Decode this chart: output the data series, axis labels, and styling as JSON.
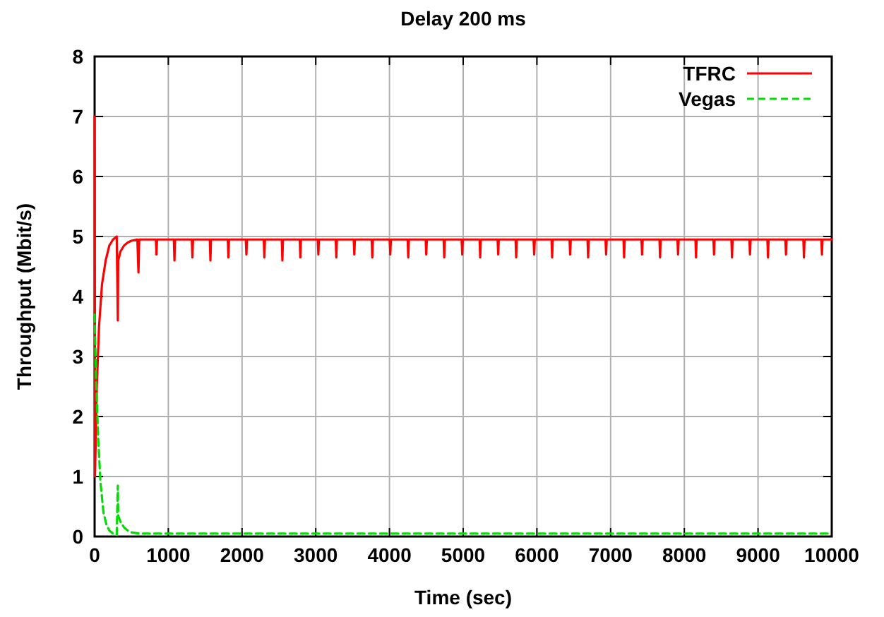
{
  "chart_data": {
    "type": "line",
    "title": "Delay 200 ms",
    "xlabel": "Time (sec)",
    "ylabel": "Throughput (Mbit/s)",
    "xlim": [
      0,
      10000
    ],
    "xticks": [
      0,
      1000,
      2000,
      3000,
      4000,
      5000,
      6000,
      7000,
      8000,
      9000,
      10000
    ],
    "ylim": [
      0,
      8
    ],
    "yticks": [
      0,
      1,
      2,
      3,
      4,
      5,
      6,
      7,
      8
    ],
    "grid": true,
    "legend": "top right",
    "series": [
      {
        "name": "TFRC",
        "color": "#ff0000",
        "line_style": "solid",
        "x": [
          0,
          5,
          30,
          60,
          100,
          150,
          200,
          250,
          300,
          315,
          320,
          350,
          400,
          450,
          500,
          580,
          595,
          605,
          831,
          839,
          847,
          1075,
          1083,
          1091,
          1319,
          1327,
          1335,
          1563,
          1571,
          1579,
          1807,
          1815,
          1823,
          2051,
          2059,
          2067,
          2295,
          2303,
          2311,
          2539,
          2547,
          2555,
          2783,
          2791,
          2799,
          3027,
          3035,
          3043,
          3271,
          3279,
          3287,
          3515,
          3523,
          3531,
          3759,
          3767,
          3775,
          4003,
          4011,
          4019,
          4247,
          4255,
          4263,
          4491,
          4499,
          4507,
          4735,
          4743,
          4751,
          4979,
          4987,
          4995,
          5223,
          5231,
          5239,
          5467,
          5475,
          5483,
          5711,
          5719,
          5727,
          5955,
          5963,
          5971,
          6199,
          6207,
          6215,
          6443,
          6451,
          6459,
          6687,
          6695,
          6703,
          6931,
          6939,
          6947,
          7175,
          7183,
          7191,
          7419,
          7427,
          7435,
          7663,
          7671,
          7679,
          7907,
          7915,
          7923,
          8151,
          8159,
          8167,
          8395,
          8403,
          8411,
          8639,
          8647,
          8655,
          8883,
          8891,
          8899,
          9127,
          9135,
          9143,
          9371,
          9379,
          9387,
          9615,
          9623,
          9631,
          9859,
          9867,
          9875,
          10000
        ],
        "values": [
          7,
          1,
          2.5,
          3.5,
          4.2,
          4.6,
          4.85,
          4.95,
          5,
          3.6,
          4.6,
          4.75,
          4.85,
          4.9,
          4.93,
          4.95,
          4.4,
          4.95,
          4.95,
          4.7,
          4.95,
          4.95,
          4.6,
          4.95,
          4.95,
          4.65,
          4.95,
          4.95,
          4.6,
          4.95,
          4.95,
          4.65,
          4.95,
          4.95,
          4.7,
          4.95,
          4.95,
          4.65,
          4.95,
          4.95,
          4.6,
          4.95,
          4.95,
          4.65,
          4.95,
          4.95,
          4.7,
          4.95,
          4.95,
          4.65,
          4.95,
          4.95,
          4.7,
          4.95,
          4.95,
          4.65,
          4.95,
          4.95,
          4.7,
          4.95,
          4.95,
          4.65,
          4.95,
          4.95,
          4.7,
          4.95,
          4.95,
          4.65,
          4.95,
          4.95,
          4.7,
          4.95,
          4.95,
          4.65,
          4.95,
          4.95,
          4.7,
          4.95,
          4.95,
          4.65,
          4.95,
          4.95,
          4.7,
          4.95,
          4.95,
          4.65,
          4.95,
          4.95,
          4.7,
          4.95,
          4.95,
          4.65,
          4.95,
          4.95,
          4.7,
          4.95,
          4.95,
          4.65,
          4.95,
          4.95,
          4.7,
          4.95,
          4.95,
          4.65,
          4.95,
          4.95,
          4.7,
          4.95,
          4.95,
          4.65,
          4.95,
          4.95,
          4.7,
          4.95,
          4.95,
          4.65,
          4.95,
          4.95,
          4.7,
          4.95,
          4.95,
          4.65,
          4.95,
          4.95,
          4.7,
          4.95,
          4.95,
          4.65,
          4.95,
          4.95,
          4.7,
          4.95,
          4.95
        ]
      },
      {
        "name": "Vegas",
        "color": "#00dd00",
        "line_style": "dashed",
        "x": [
          0,
          20,
          50,
          80,
          120,
          160,
          200,
          250,
          300,
          315,
          320,
          350,
          400,
          450,
          500,
          600,
          700,
          10000
        ],
        "values": [
          3.7,
          2.6,
          1.6,
          0.9,
          0.4,
          0.2,
          0.1,
          0.05,
          0.03,
          0.85,
          0.35,
          0.25,
          0.15,
          0.1,
          0.07,
          0.05,
          0.05,
          0.05
        ]
      }
    ]
  }
}
